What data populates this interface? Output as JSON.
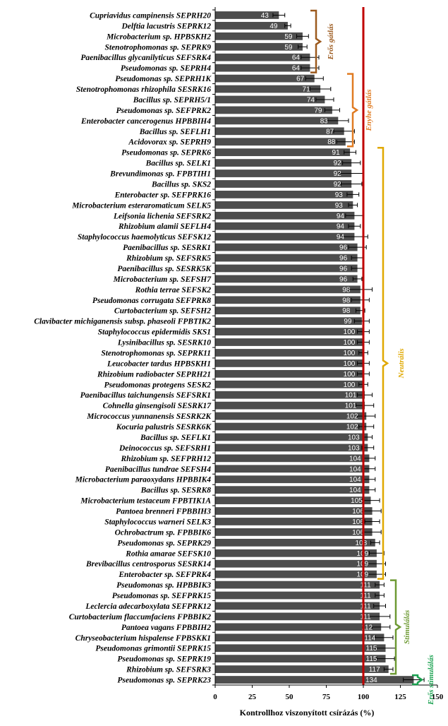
{
  "chart_data": {
    "type": "bar",
    "orientation": "horizontal",
    "xlabel": "Kontrollhoz viszonyított csírázás (%)",
    "xlim": [
      0,
      150
    ],
    "xticks": [
      0,
      25,
      50,
      75,
      100,
      125,
      150
    ],
    "reference_line": {
      "value": 100,
      "color": "#c00000"
    },
    "bar_color": "#4d4d4d",
    "categories": [
      "Cupriavidus campinensis SEPRH20",
      "Delftia lacustris SEPRK12",
      "Microbacterium sp. HPBSKH2",
      "Stenotrophomonas sp. SEPRK9",
      "Paenibacillus glycanilyticus SEFSRK4",
      "Pseudomonas sp. SEPRH4",
      "Pseudomonas sp. SEPRH1K",
      "Stenotrophomonas rhizophila SESRK16",
      "Bacillus sp. SEPRH5/1",
      "Pseudomonas sp. SEFPRK2",
      "Enterobacter cancerogenus HPBBIH4",
      "Bacillus sp. SEFLH1",
      "Acidovorax sp. SEPRH9",
      "Pseudomonas sp. SEPRK6",
      "Bacillus sp. SELK1",
      "Brevundimonas sp. FPBTIH1",
      "Bacillus sp.  SKS2",
      "Enterobacter sp. SEFPRK16",
      "Microbacterium esteraromaticum SELK5",
      "Leifsonia lichenia SEFSRK2",
      "Rhizobium alamii SEFLH4",
      "Staphylococcus haemolyticus SEFSK12",
      "Paenibacillus sp. SESRK1",
      "Rhizobium sp. SEFSRK5",
      "Paenibacillus sp. SESRK5K",
      "Microbacterium sp. SEFSH7",
      "Rothia terrae SEFSK2",
      "Pseudomonas corrugata SEFPRK8",
      "Curtobacterium sp. SEFSH2",
      "Clavibacter michiganensis subsp. phaseoli FPBTIK2",
      "Staphylococcus epidermidis SKS1",
      "Lysinibacillus sp. SESRK10",
      "Stenotrophomonas sp. SEPRK11",
      "Leucobacter tardus HPBSKH1",
      "Rhizobium radiobacter SEPRH21",
      "Pseudomonas protegens SESK2",
      "Paenibacillus taichungensis SEFSRK1",
      "Cohnella ginsengisoli SESRK17",
      "Micrococcus yunnanensis SESRK2K",
      "Kocuria palustris SESRK6K",
      "Bacillus sp. SEFLK1",
      "Deinococcus sp. SEFSRH1",
      "Rhizobium sp. SEFPRH12",
      "Paenibacillus tundrae SEFSH4",
      "Microbacterium paraoxydans HPBBIK4",
      "Bacillus sp. SESRK8",
      "Microbacterium testaceum FPBTIK1A",
      "Pantoea brenneri FPBBIH3",
      "Staphylococcus warneri SELK3",
      "Ochrobactrum sp. FPBBIK6",
      "Pseudomonas sp. SEPRK29",
      "Rothia amarae SEFSK10",
      "Brevibacillus centrosporus SESRK14",
      "Enterobacter sp. SEFPRK4",
      "Pseudomonas sp. HPBBIK3",
      "Pseudomonas sp. SEFPRK15",
      "Leclercia adecarboxylata SEFPRK12",
      "Curtobacterium flaccumfaciens FPBBIK2",
      "Pantoea vagans FPBBIH2",
      "Chryseobacterium hispalense FPBSKK1",
      "Pseudomonas grimontii SEPRK15",
      "Pseudomonas sp. SEPRK19",
      "Rhizobium sp. SEFSRK3",
      "Pseudomonas sp. SEPRK23"
    ],
    "values": [
      43,
      49,
      59,
      59,
      64,
      64,
      67,
      71,
      74,
      79,
      83,
      87,
      88,
      91,
      92,
      92,
      92,
      93,
      93,
      94,
      94,
      94,
      96,
      96,
      96,
      96,
      98,
      98,
      98,
      99,
      100,
      100,
      100,
      100,
      100,
      100,
      101,
      101,
      102,
      102,
      103,
      103,
      104,
      104,
      104,
      104,
      105,
      106,
      106,
      106,
      108,
      109,
      109,
      109,
      111,
      111,
      111,
      111,
      112,
      114,
      115,
      115,
      117,
      134
    ],
    "errors": [
      4,
      2,
      4,
      3,
      6,
      6,
      6,
      7,
      6,
      5,
      7,
      7,
      6,
      4,
      6,
      8,
      7,
      4,
      3,
      6,
      4,
      9,
      6,
      4,
      4,
      3,
      8,
      6,
      3,
      5,
      4,
      4,
      3,
      4,
      4,
      3,
      5,
      6,
      6,
      5,
      3,
      4,
      4,
      4,
      4,
      4,
      6,
      6,
      5,
      6,
      3,
      5,
      6,
      6,
      3,
      3,
      4,
      7,
      6,
      6,
      7,
      6,
      3,
      7
    ],
    "value_labels": [
      "43",
      "49",
      "59",
      "59",
      "64",
      "64",
      "67",
      "71",
      "74",
      "79",
      "83",
      "87",
      "88",
      "91",
      "92",
      "92",
      "92",
      "93",
      "93",
      "94",
      "94",
      "94",
      "96",
      "96",
      "96",
      "96",
      "98",
      "98",
      "98",
      "99",
      "100",
      "100",
      "100",
      "100",
      "100",
      "100",
      "101",
      "101",
      "102",
      "102",
      "103",
      "103",
      "104",
      "104",
      "104",
      "104",
      "105",
      "106",
      "106",
      "106",
      "108",
      "109",
      "109",
      "109",
      "111",
      "111",
      "111",
      "111",
      "112",
      "114",
      "115",
      "115",
      "117",
      "134"
    ],
    "groups": [
      {
        "label": "Erős gátlás",
        "from": 0,
        "to": 5,
        "color": "#9c5a1e"
      },
      {
        "label": "Enyhe gátlás",
        "from": 6,
        "to": 12,
        "color": "#e07b22"
      },
      {
        "label": "Neutrális",
        "from": 13,
        "to": 53,
        "color": "#e0a800"
      },
      {
        "label": "Stimulálás",
        "from": 54,
        "to": 62,
        "color": "#6e9a34"
      },
      {
        "label": "Erős stimulálás",
        "from": 63,
        "to": 63,
        "color": "#1aa150"
      }
    ]
  }
}
